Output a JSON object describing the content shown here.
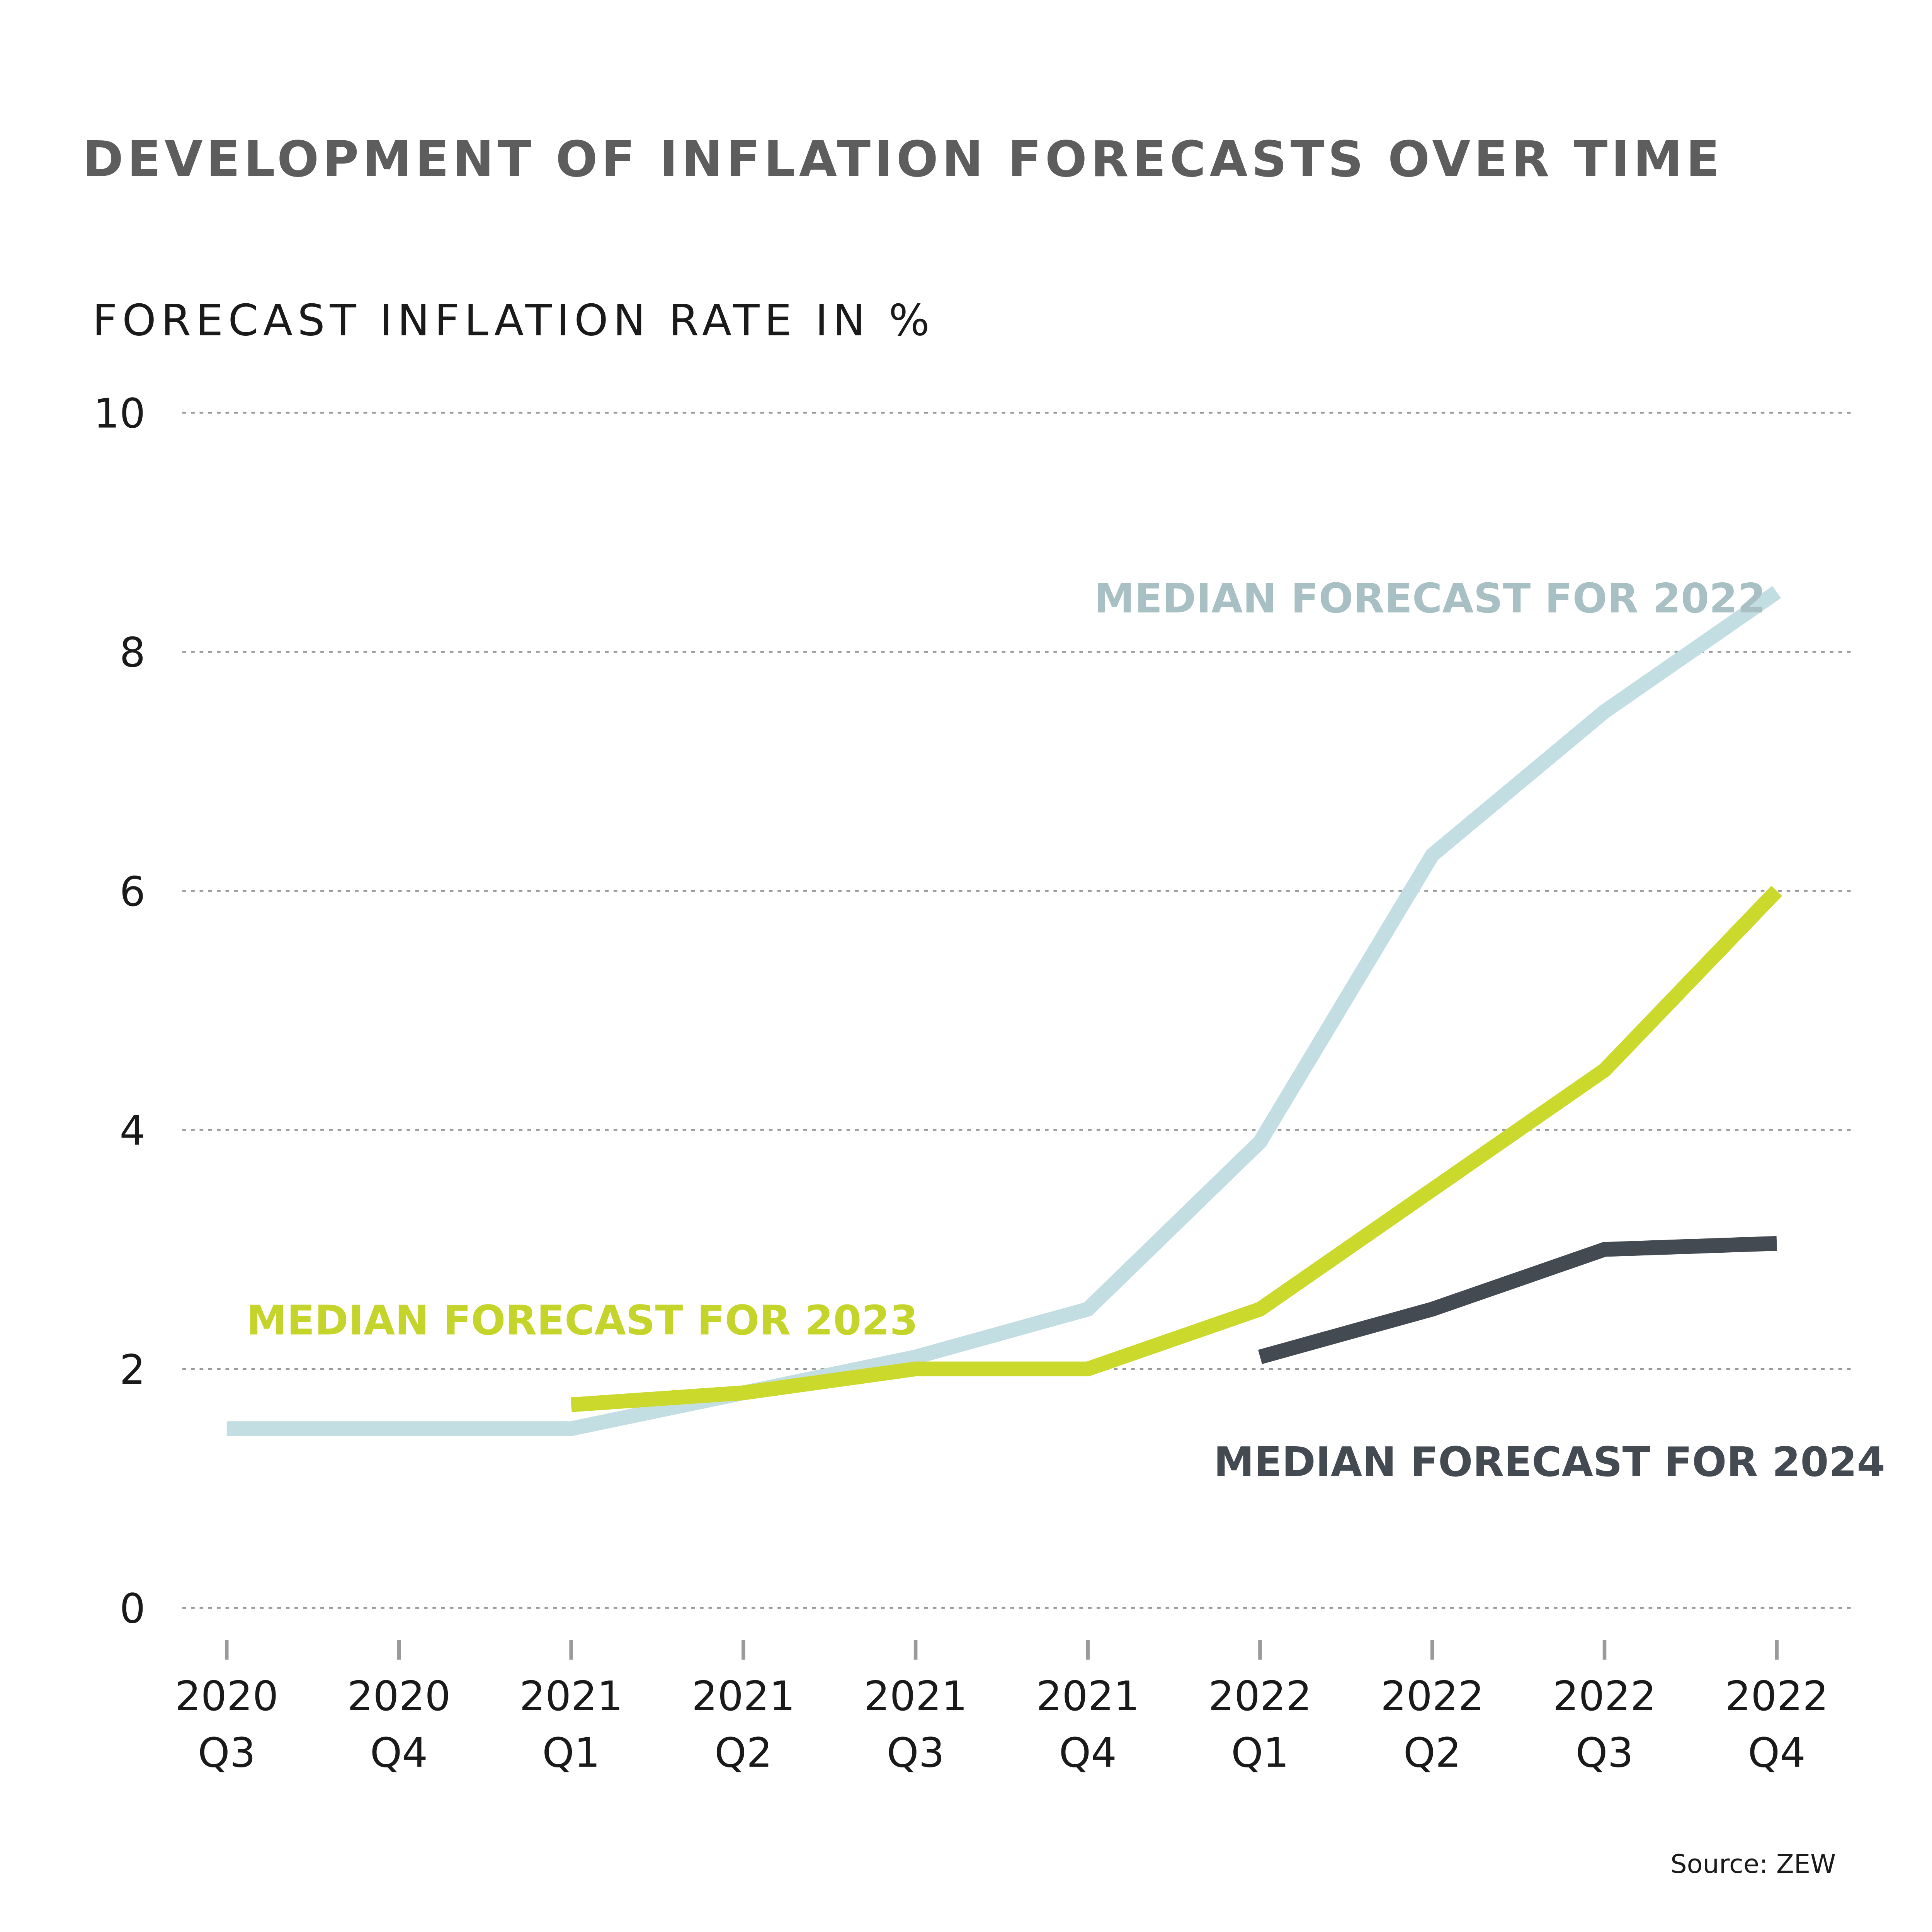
{
  "chart_data": {
    "type": "line",
    "title": "DEVELOPMENT OF INFLATION FORECASTS OVER TIME",
    "ylabel": "FORECAST INFLATION RATE IN %",
    "xlabel": "",
    "ylim": [
      0,
      10
    ],
    "yticks": [
      "0",
      "2",
      "4",
      "6",
      "8",
      "10"
    ],
    "grid": true,
    "categories": [
      [
        "2020",
        "Q3"
      ],
      [
        "2020",
        "Q4"
      ],
      [
        "2021",
        "Q1"
      ],
      [
        "2021",
        "Q2"
      ],
      [
        "2021",
        "Q3"
      ],
      [
        "2021",
        "Q4"
      ],
      [
        "2022",
        "Q1"
      ],
      [
        "2022",
        "Q2"
      ],
      [
        "2022",
        "Q3"
      ],
      [
        "2022",
        "Q4"
      ]
    ],
    "series": [
      {
        "name": "MEDIAN FORECAST FOR 2022",
        "color": "#c3dee2",
        "label_color": "#a8c0c3",
        "values": [
          1.5,
          1.5,
          1.5,
          1.8,
          2.1,
          2.5,
          3.9,
          6.3,
          7.5,
          8.5
        ]
      },
      {
        "name": "MEDIAN FORECAST FOR 2023",
        "color": "#cbd92c",
        "label_color": "#c5d42a",
        "values": [
          null,
          null,
          1.7,
          1.8,
          2.0,
          2.0,
          2.5,
          3.5,
          4.5,
          6.0
        ]
      },
      {
        "name": "MEDIAN FORECAST FOR 2024",
        "color": "#434a52",
        "label_color": "#434a52",
        "values": [
          null,
          null,
          null,
          null,
          null,
          null,
          2.1,
          2.5,
          3.0,
          3.05
        ]
      }
    ],
    "source": "Source: ZEW"
  }
}
